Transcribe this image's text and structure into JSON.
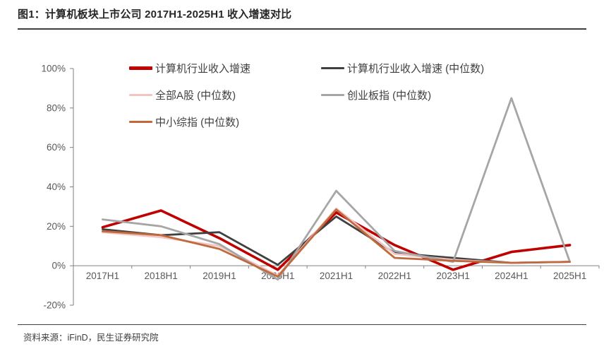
{
  "figure": {
    "title": "图1：计算机板块上市公司 2017H1-2025H1 收入增速对比",
    "source": "资料来源：iFinD，民生证券研究院"
  },
  "style": {
    "axis_color": "#808080",
    "tick_label_color": "#595959",
    "legend_text_color": "#404040"
  },
  "chart_data": {
    "type": "line",
    "title": "",
    "xlabel": "",
    "ylabel": "",
    "categories": [
      "2017H1",
      "2018H1",
      "2019H1",
      "2020H1",
      "2021H1",
      "2022H1",
      "2023H1",
      "2024H1",
      "2025H1"
    ],
    "series": [
      {
        "name": "计算机行业收入增速",
        "color": "#C00000",
        "line_width": 3.6,
        "marker_height": 5,
        "values": [
          19.5,
          28,
          14,
          -2,
          27,
          10.5,
          -2,
          7,
          10.5
        ]
      },
      {
        "name": "计算机行业收入增速 (中位数)",
        "color": "#404040",
        "line_width": 2.8,
        "marker_height": 3.5,
        "values": [
          18.5,
          15.5,
          17,
          0.5,
          25,
          6.5,
          4,
          1.5,
          2
        ]
      },
      {
        "name": "全部A股 (中位数)",
        "color": "#F2C5C2",
        "line_width": 2.8,
        "marker_height": 3.5,
        "values": [
          17,
          14.5,
          10,
          -5,
          29,
          6,
          3,
          1.5,
          2
        ]
      },
      {
        "name": "创业板指 (中位数)",
        "color": "#A6A6A6",
        "line_width": 2.8,
        "marker_height": 3.5,
        "values": [
          23.5,
          20,
          11,
          -7,
          38,
          7.5,
          2,
          85,
          2
        ]
      },
      {
        "name": "中小综指 (中位数)",
        "color": "#C0693E",
        "line_width": 2.8,
        "marker_height": 3.5,
        "values": [
          17.5,
          15.5,
          8.5,
          -5.5,
          28.5,
          4,
          2.5,
          1.5,
          2
        ]
      }
    ],
    "y_axis": {
      "min": -20,
      "max": 100,
      "ticks": [
        100,
        80,
        60,
        40,
        20,
        0,
        -20
      ],
      "tick_labels": [
        "100%",
        "80%",
        "60%",
        "40%",
        "20%",
        "0%",
        "-20%"
      ]
    },
    "grid": false,
    "legend_position": "top",
    "legend_columns": 2
  }
}
